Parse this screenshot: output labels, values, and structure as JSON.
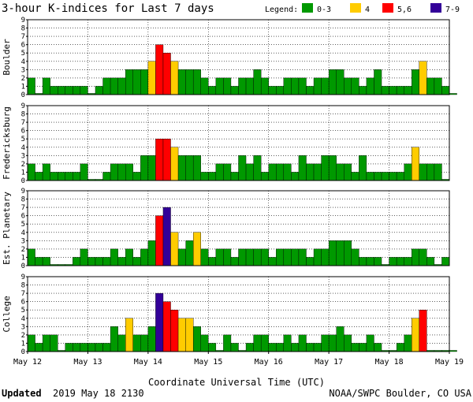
{
  "title": "3-hour K-indices for Last 7 days",
  "legend": {
    "label": "Legend:",
    "items": [
      {
        "label": "0-3",
        "color": "#009900"
      },
      {
        "label": "4",
        "color": "#ffcc00"
      },
      {
        "label": "5,6",
        "color": "#ff0000"
      },
      {
        "label": "7-9",
        "color": "#330099"
      }
    ]
  },
  "footer": {
    "updated_label": "Updated",
    "updated_value": "2019 May 18 2130",
    "credit": "NOAA/SWPC Boulder, CO USA"
  },
  "chart_data": {
    "type": "bar",
    "xlabel": "Coordinate Universal Time (UTC)",
    "x_ticks": [
      "May 12",
      "May 13",
      "May 14",
      "May 15",
      "May 16",
      "May 17",
      "May 18",
      "May 19"
    ],
    "y_ticks": [
      "0",
      "1",
      "2",
      "3",
      "4",
      "5",
      "6",
      "7",
      "8",
      "9"
    ],
    "ylim": [
      0,
      9
    ],
    "bins_per_day": 8,
    "panels": [
      {
        "name": "Boulder",
        "values": [
          2,
          0,
          2,
          1,
          1,
          1,
          1,
          1,
          0,
          1,
          2,
          2,
          2,
          3,
          3,
          3,
          4,
          6,
          5,
          4,
          3,
          3,
          3,
          2,
          1,
          2,
          2,
          1,
          2,
          2,
          3,
          2,
          1,
          1,
          2,
          2,
          2,
          1,
          2,
          2,
          3,
          3,
          2,
          2,
          1,
          2,
          3,
          1,
          1,
          1,
          1,
          3,
          4,
          2,
          2,
          1,
          0
        ]
      },
      {
        "name": "Fredericksburg",
        "values": [
          2,
          1,
          2,
          1,
          1,
          1,
          1,
          2,
          0,
          0,
          1,
          2,
          2,
          2,
          1,
          3,
          3,
          5,
          5,
          4,
          3,
          3,
          3,
          1,
          1,
          2,
          2,
          1,
          3,
          2,
          3,
          1,
          2,
          2,
          2,
          1,
          3,
          2,
          2,
          3,
          3,
          2,
          2,
          1,
          3,
          1,
          1,
          1,
          1,
          1,
          2,
          4,
          2,
          2,
          2,
          0
        ]
      },
      {
        "name": "Est. Planetary",
        "values": [
          2,
          1,
          1,
          0,
          0,
          0,
          1,
          2,
          1,
          1,
          1,
          2,
          1,
          2,
          1,
          2,
          3,
          6,
          7,
          4,
          2,
          3,
          4,
          2,
          1,
          2,
          2,
          1,
          2,
          2,
          2,
          2,
          1,
          2,
          2,
          2,
          2,
          1,
          2,
          2,
          3,
          3,
          3,
          2,
          1,
          1,
          1,
          0,
          1,
          1,
          1,
          2,
          2,
          1,
          0,
          1
        ]
      },
      {
        "name": "College",
        "values": [
          2,
          1,
          2,
          2,
          0,
          1,
          1,
          1,
          1,
          1,
          1,
          3,
          2,
          4,
          2,
          2,
          3,
          7,
          6,
          5,
          4,
          4,
          3,
          2,
          1,
          0,
          2,
          1,
          0,
          1,
          2,
          2,
          1,
          1,
          2,
          1,
          2,
          1,
          1,
          2,
          2,
          3,
          2,
          1,
          1,
          2,
          1,
          0,
          0,
          1,
          2,
          4,
          5,
          0,
          0,
          0,
          0
        ]
      }
    ]
  }
}
